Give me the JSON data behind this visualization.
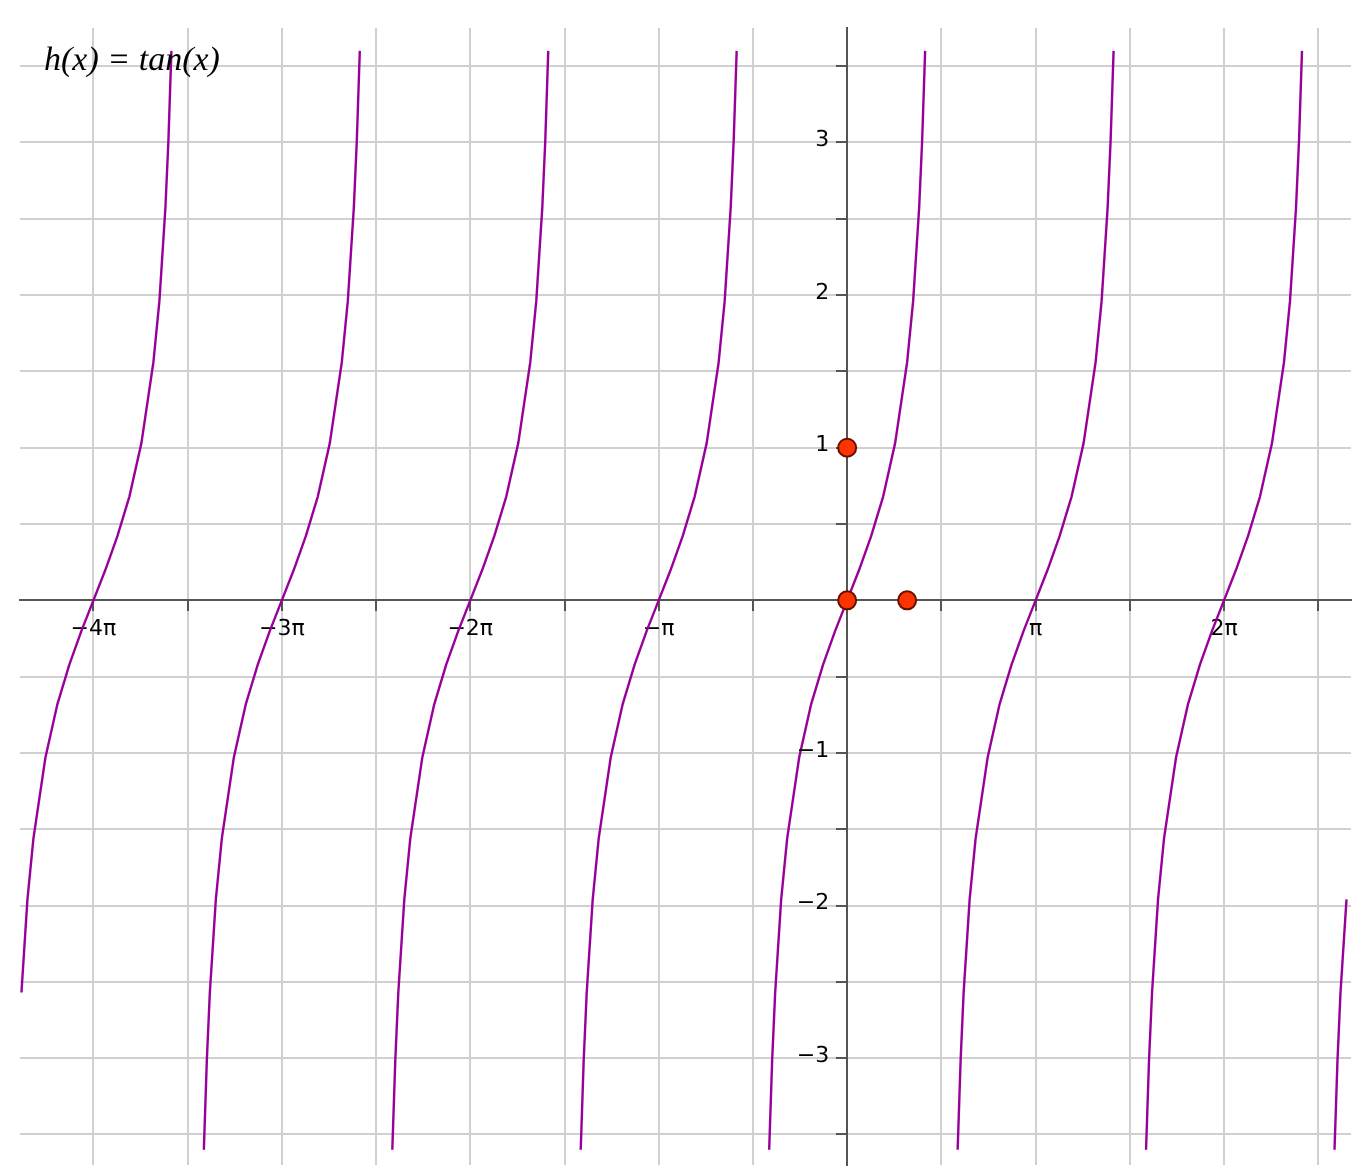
{
  "chart_data": {
    "type": "line",
    "annotations": [
      "h(x) = tan(x)"
    ],
    "xlim": [
      -13.79,
      8.4
    ],
    "ylim": [
      -3.7,
      3.75
    ],
    "xticks": [
      {
        "value": -12.566,
        "label": "−4π"
      },
      {
        "value": -10.996,
        "label": null
      },
      {
        "value": -9.425,
        "label": "−3π"
      },
      {
        "value": -7.854,
        "label": null
      },
      {
        "value": -6.283,
        "label": "−2π"
      },
      {
        "value": -4.712,
        "label": null
      },
      {
        "value": -3.142,
        "label": "−π"
      },
      {
        "value": -1.571,
        "label": null
      },
      {
        "value": 0,
        "label": null
      },
      {
        "value": 1.571,
        "label": null
      },
      {
        "value": 3.142,
        "label": "π"
      },
      {
        "value": 4.712,
        "label": null
      },
      {
        "value": 6.283,
        "label": "2π"
      },
      {
        "value": 7.854,
        "label": null
      }
    ],
    "yticks": [
      {
        "value": -3.5,
        "label": null
      },
      {
        "value": -3,
        "label": "−3"
      },
      {
        "value": -2.5,
        "label": null
      },
      {
        "value": -2,
        "label": "−2"
      },
      {
        "value": -1.5,
        "label": null
      },
      {
        "value": -1,
        "label": "−1"
      },
      {
        "value": -0.5,
        "label": null
      },
      {
        "value": 0,
        "label": null
      },
      {
        "value": 0.5,
        "label": null
      },
      {
        "value": 1,
        "label": "1"
      },
      {
        "value": 1.5,
        "label": null
      },
      {
        "value": 2,
        "label": "2"
      },
      {
        "value": 2.5,
        "label": null
      },
      {
        "value": 3,
        "label": "3"
      },
      {
        "value": 3.5,
        "label": null
      }
    ],
    "grid": true,
    "series": [
      {
        "type": "line",
        "color": "#990099",
        "marker": "none",
        "line_style": "solid",
        "x": [
          -13.766,
          -13.666,
          -13.566,
          -13.366,
          -13.166,
          -12.966,
          -12.766,
          -12.566,
          -12.366,
          -12.166,
          -11.966,
          -11.766,
          -11.566,
          -11.466,
          -11.366,
          -11.316,
          -11.266,
          -11.0,
          -10.725,
          -10.675,
          -10.625,
          -10.525,
          -10.425,
          -10.225,
          -10.025,
          -9.825,
          -9.625,
          -9.425,
          -9.225,
          -9.025,
          -8.825,
          -8.625,
          -8.425,
          -8.325,
          -8.225,
          -8.175,
          -8.125,
          -7.85,
          -7.583,
          -7.533,
          -7.483,
          -7.383,
          -7.283,
          -7.083,
          -6.883,
          -6.683,
          -6.483,
          -6.283,
          -6.083,
          -5.883,
          -5.683,
          -5.483,
          -5.283,
          -5.183,
          -5.083,
          -5.033,
          -4.983,
          -4.7,
          -4.442,
          -4.392,
          -4.342,
          -4.242,
          -4.142,
          -3.942,
          -3.742,
          -3.542,
          -3.342,
          -3.142,
          -2.942,
          -2.742,
          -2.542,
          -2.342,
          -2.142,
          -2.042,
          -1.942,
          -1.892,
          -1.842,
          -1.57,
          -1.3,
          -1.25,
          -1.2,
          -1.1,
          -1,
          -0.8,
          -0.6,
          -0.4,
          -0.2,
          0,
          0.2,
          0.4,
          0.6,
          0.8,
          1,
          1.1,
          1.2,
          1.25,
          1.3,
          1.57,
          1.842,
          1.892,
          1.942,
          2.042,
          2.142,
          2.342,
          2.542,
          2.742,
          2.942,
          3.142,
          3.342,
          3.542,
          3.742,
          3.942,
          4.142,
          4.242,
          4.342,
          4.392,
          4.442,
          4.7,
          4.983,
          5.033,
          5.083,
          5.183,
          5.283,
          5.483,
          5.683,
          5.883,
          6.083,
          6.283,
          6.483,
          6.683,
          6.883,
          7.083,
          7.283,
          7.383,
          7.483,
          7.533,
          7.583,
          7.85,
          8.125,
          8.175,
          8.225,
          8.325
        ],
        "values": [
          -2.57,
          -1.96,
          -1.56,
          -1.03,
          -0.68,
          -0.42,
          -0.2,
          0,
          0.2,
          0.42,
          0.68,
          1.03,
          1.56,
          1.96,
          2.57,
          3.01,
          3.6,
          null,
          -3.6,
          -3.01,
          -2.57,
          -1.96,
          -1.56,
          -1.03,
          -0.68,
          -0.42,
          -0.2,
          0,
          0.2,
          0.42,
          0.68,
          1.03,
          1.56,
          1.96,
          2.57,
          3.01,
          3.6,
          null,
          -3.6,
          -3.01,
          -2.57,
          -1.96,
          -1.56,
          -1.03,
          -0.68,
          -0.42,
          -0.2,
          0,
          0.2,
          0.42,
          0.68,
          1.03,
          1.56,
          1.96,
          2.57,
          3.01,
          3.6,
          null,
          -3.6,
          -3.01,
          -2.57,
          -1.96,
          -1.56,
          -1.03,
          -0.68,
          -0.42,
          -0.2,
          0,
          0.2,
          0.42,
          0.68,
          1.03,
          1.56,
          1.96,
          2.57,
          3.01,
          3.6,
          null,
          -3.6,
          -3.01,
          -2.57,
          -1.96,
          -1.56,
          -1.03,
          -0.68,
          -0.42,
          -0.2,
          0,
          0.2,
          0.42,
          0.68,
          1.03,
          1.56,
          1.96,
          2.57,
          3.01,
          3.6,
          null,
          -3.6,
          -3.01,
          -2.57,
          -1.96,
          -1.56,
          -1.03,
          -0.68,
          -0.42,
          -0.2,
          0,
          0.2,
          0.42,
          0.68,
          1.03,
          1.56,
          1.96,
          2.57,
          3.01,
          3.6,
          null,
          -3.6,
          -3.01,
          -2.57,
          -1.96,
          -1.56,
          -1.03,
          -0.68,
          -0.42,
          -0.2,
          0,
          0.2,
          0.42,
          0.68,
          1.03,
          1.56,
          1.96,
          2.57,
          3.01,
          3.6,
          null,
          -3.6,
          -3.01,
          -2.57,
          -1.96
        ]
      },
      {
        "type": "scatter",
        "color": "#ff3300",
        "marker": "circle",
        "x": [
          0,
          0,
          1
        ],
        "values": [
          1,
          0,
          0
        ]
      }
    ]
  }
}
